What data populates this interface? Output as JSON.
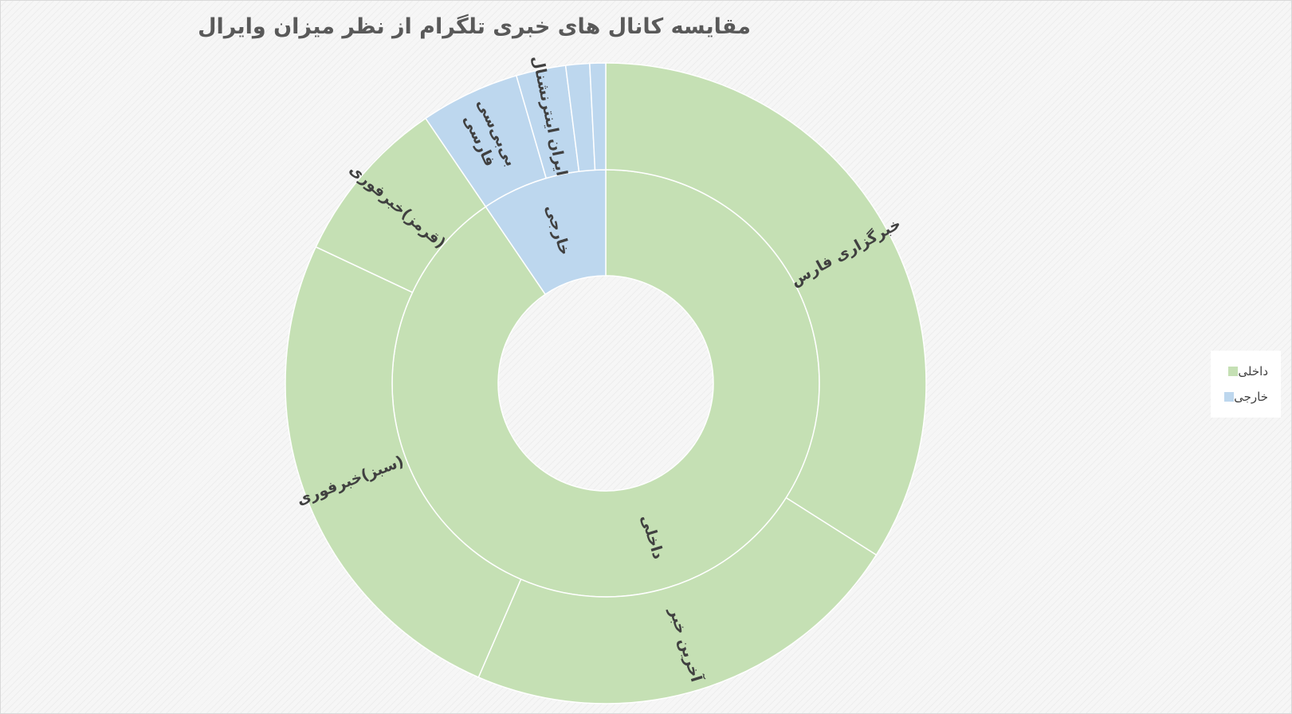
{
  "chart_data": {
    "type": "sunburst",
    "title": "مقایسه کانال های خبری تلگرام از نظر میزان وایرال",
    "inner_ring": [
      {
        "name": "داخلی",
        "value": 90.5,
        "color": "#c5e0b4"
      },
      {
        "name": "خارجی",
        "value": 9.5,
        "color": "#bdd7ee"
      }
    ],
    "outer_ring": [
      {
        "name": "خبرگزاری فارس",
        "value": 34.0,
        "parent": "داخلی"
      },
      {
        "name": "آخرین خبر",
        "value": 22.5,
        "parent": "داخلی"
      },
      {
        "name": "(سبز)خبرفوری",
        "value": 25.5,
        "parent": "داخلی"
      },
      {
        "name": "(قرمز)خبرفوری",
        "value": 8.5,
        "parent": "داخلی"
      },
      {
        "name": "بی‌بی‌سی فارسی",
        "value": 5.0,
        "parent": "خارجی"
      },
      {
        "name": "ایران اینترنشنال",
        "value": 2.5,
        "parent": "خارجی"
      },
      {
        "name": "",
        "value": 1.2,
        "parent": "خارجی"
      },
      {
        "name": "",
        "value": 0.8,
        "parent": "خارجی"
      }
    ],
    "legend": {
      "position": "right",
      "items": [
        {
          "label": "داخلی",
          "color": "#c5e0b4"
        },
        {
          "label": "خارجی",
          "color": "#bdd7ee"
        }
      ]
    }
  }
}
